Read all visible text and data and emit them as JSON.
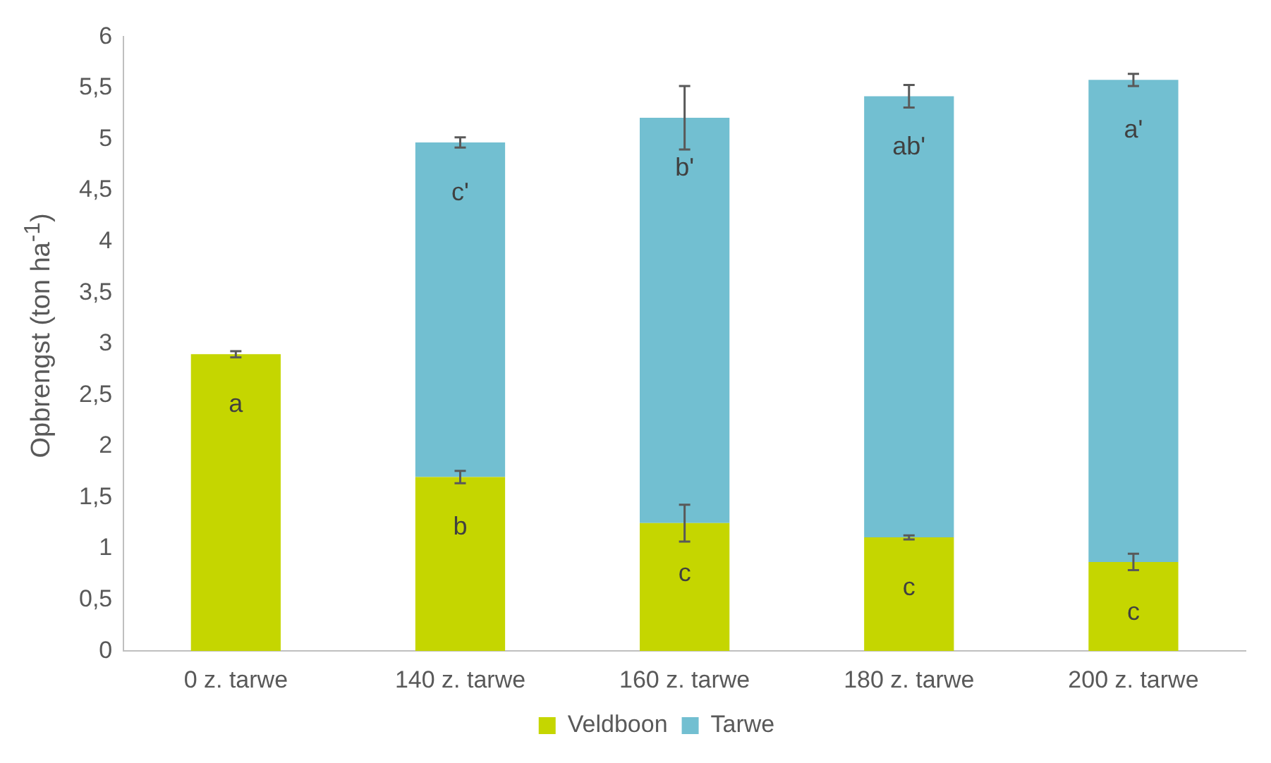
{
  "chart_data": {
    "type": "bar",
    "stacked": true,
    "ylabel": "Opbrengst (ton ha$^{-1}$)",
    "categories": [
      "0 z. tarwe",
      "140 z. tarwe",
      "160 z. tarwe",
      "180 z. tarwe",
      "200 z. tarwe"
    ],
    "series": [
      {
        "name": "Veldboon",
        "color": "#c5d600",
        "values": [
          2.9,
          1.7,
          1.25,
          1.11,
          0.87
        ],
        "errors": [
          0.03,
          0.06,
          0.18,
          0.02,
          0.08
        ]
      },
      {
        "name": "Tarwe",
        "color": "#72bfd1",
        "values": [
          null,
          3.27,
          3.96,
          4.31,
          4.71
        ],
        "errors": [
          null,
          0.05,
          0.31,
          0.11,
          0.06
        ]
      }
    ],
    "ylim": [
      0,
      6
    ],
    "yticks": [
      0,
      {
        "value": 0.5,
        "label": "0,5"
      },
      1,
      {
        "value": 1.5,
        "label": "1,5"
      },
      2,
      {
        "value": 2.5,
        "label": "2,5"
      },
      3,
      {
        "value": 3.5,
        "label": "3,5"
      },
      4,
      {
        "value": 4.5,
        "label": "4,5"
      },
      5,
      {
        "value": 5.5,
        "label": "5,5"
      },
      6
    ],
    "grid": false,
    "legend": "bottom",
    "annotations": [
      "a",
      "b",
      "c",
      "c",
      "c",
      "c'",
      "b'",
      "ab'",
      "a'"
    ]
  }
}
